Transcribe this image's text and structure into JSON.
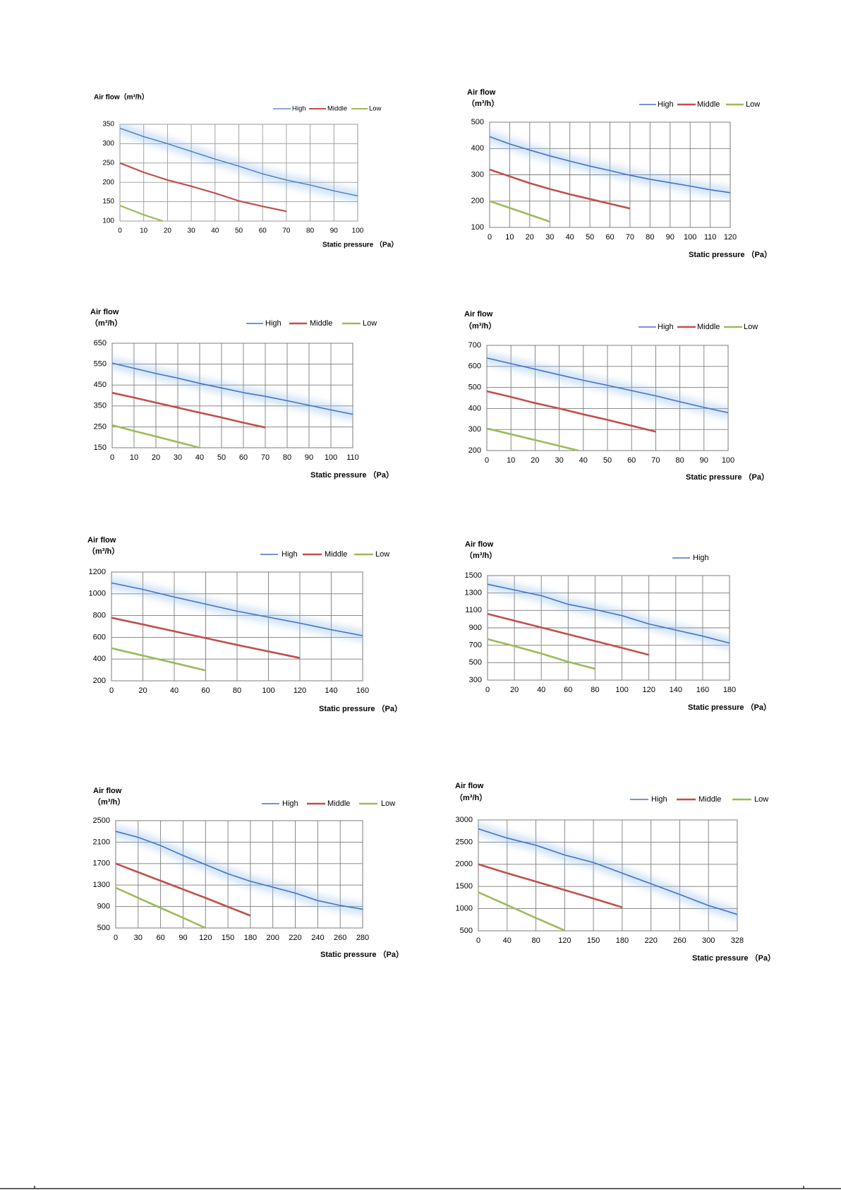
{
  "chart_data": [
    {
      "type": "line",
      "ylabel": [
        "Air flow（m³/h）"
      ],
      "xlabel": "Static pressure （Pa）",
      "x_scale": "linear",
      "xlim": [
        0,
        100
      ],
      "xticks": [
        0,
        10,
        20,
        30,
        40,
        50,
        60,
        70,
        80,
        90,
        100
      ],
      "ylim": [
        100,
        350
      ],
      "yticks": [
        100,
        150,
        200,
        250,
        300,
        350
      ],
      "grid": true,
      "legend_position": "top-right",
      "legend": [
        "High",
        "Middle",
        "Low"
      ],
      "series": [
        {
          "name": "High",
          "color": "#4472C4",
          "x": [
            0,
            10,
            20,
            30,
            40,
            50,
            60,
            70,
            80,
            90,
            100
          ],
          "y": [
            340,
            318,
            300,
            280,
            260,
            242,
            222,
            206,
            193,
            178,
            165
          ]
        },
        {
          "name": "Middle",
          "color": "#C0504D",
          "x": [
            0,
            10,
            20,
            30,
            40,
            50,
            60,
            70
          ],
          "y": [
            250,
            226,
            206,
            190,
            172,
            152,
            138,
            125
          ]
        },
        {
          "name": "Low",
          "color": "#9BBB59",
          "x": [
            0,
            10,
            18
          ],
          "y": [
            140,
            116,
            100
          ]
        }
      ]
    },
    {
      "type": "line",
      "ylabel": [
        "Air flow",
        "（m³/h）"
      ],
      "xlabel": "Static pressure （Pa）",
      "x_scale": "linear",
      "xlim": [
        0,
        120
      ],
      "xticks": [
        0,
        10,
        20,
        30,
        40,
        50,
        60,
        70,
        80,
        90,
        100,
        110,
        120
      ],
      "ylim": [
        100,
        500
      ],
      "yticks": [
        100,
        200,
        300,
        400,
        500
      ],
      "grid": true,
      "legend_position": "top-right",
      "legend": [
        "High",
        "Middle",
        "Low"
      ],
      "series": [
        {
          "name": "High",
          "color": "#4472C4",
          "x": [
            0,
            10,
            20,
            30,
            40,
            50,
            60,
            70,
            80,
            90,
            100,
            110,
            120
          ],
          "y": [
            445,
            417,
            394,
            372,
            352,
            333,
            316,
            298,
            283,
            270,
            257,
            243,
            232
          ]
        },
        {
          "name": "Middle",
          "color": "#C0504D",
          "x": [
            0,
            10,
            20,
            30,
            40,
            50,
            60,
            70
          ],
          "y": [
            320,
            294,
            268,
            246,
            226,
            208,
            190,
            172
          ]
        },
        {
          "name": "Low",
          "color": "#9BBB59",
          "x": [
            0,
            10,
            20,
            30
          ],
          "y": [
            200,
            174,
            148,
            122
          ]
        }
      ]
    },
    {
      "type": "line",
      "ylabel": [
        "Air flow",
        "（m³/h）"
      ],
      "xlabel": "Static pressure （Pa）",
      "x_scale": "linear",
      "xlim": [
        0,
        110
      ],
      "xticks": [
        0,
        10,
        20,
        30,
        40,
        50,
        60,
        70,
        80,
        90,
        100,
        110
      ],
      "ylim": [
        150,
        650
      ],
      "yticks": [
        150,
        250,
        350,
        450,
        550,
        650
      ],
      "grid": true,
      "legend_position": "top-right",
      "legend": [
        "High",
        "Middle",
        "Low"
      ],
      "series": [
        {
          "name": "High",
          "color": "#4472C4",
          "x": [
            0,
            10,
            20,
            30,
            40,
            50,
            60,
            70,
            80,
            90,
            100,
            110
          ],
          "y": [
            555,
            530,
            505,
            483,
            458,
            436,
            414,
            396,
            375,
            353,
            331,
            310
          ]
        },
        {
          "name": "Middle",
          "color": "#C0504D",
          "x": [
            0,
            10,
            20,
            30,
            40,
            50,
            60,
            70
          ],
          "y": [
            413,
            390,
            366,
            342,
            318,
            295,
            270,
            247
          ]
        },
        {
          "name": "Low",
          "color": "#9BBB59",
          "x": [
            0,
            10,
            20,
            30,
            40
          ],
          "y": [
            258,
            230,
            204,
            177,
            150
          ]
        }
      ]
    },
    {
      "type": "line",
      "ylabel": [
        "Air flow",
        "（m³/h）"
      ],
      "xlabel": "Static pressure （Pa）",
      "x_scale": "linear",
      "xlim": [
        0,
        100
      ],
      "xticks": [
        0,
        10,
        20,
        30,
        40,
        50,
        60,
        70,
        80,
        90,
        100
      ],
      "ylim": [
        200,
        700
      ],
      "yticks": [
        200,
        300,
        400,
        500,
        600,
        700
      ],
      "grid": true,
      "legend_position": "top-right",
      "legend": [
        "High",
        "Middle",
        "Low"
      ],
      "series": [
        {
          "name": "High",
          "color": "#4472C4",
          "x": [
            0,
            10,
            20,
            30,
            40,
            50,
            60,
            70,
            80,
            90,
            100
          ],
          "y": [
            640,
            613,
            587,
            560,
            534,
            510,
            485,
            460,
            432,
            405,
            380
          ]
        },
        {
          "name": "Middle",
          "color": "#C0504D",
          "x": [
            0,
            10,
            20,
            30,
            40,
            50,
            60,
            70
          ],
          "y": [
            482,
            455,
            426,
            400,
            372,
            346,
            318,
            290
          ]
        },
        {
          "name": "Low",
          "color": "#9BBB59",
          "x": [
            0,
            10,
            20,
            30,
            38
          ],
          "y": [
            305,
            278,
            250,
            222,
            200
          ]
        }
      ]
    },
    {
      "type": "line",
      "ylabel": [
        "Air flow",
        "（m³/h）"
      ],
      "xlabel": "Static pressure （Pa）",
      "x_scale": "linear",
      "xlim": [
        0,
        160
      ],
      "xticks": [
        0,
        20,
        40,
        60,
        80,
        100,
        120,
        140,
        160
      ],
      "ylim": [
        200,
        1200
      ],
      "yticks": [
        200,
        400,
        600,
        800,
        1000,
        1200
      ],
      "grid": true,
      "legend_position": "top-right",
      "legend": [
        "High",
        "Middle",
        "Low"
      ],
      "series": [
        {
          "name": "High",
          "color": "#4472C4",
          "x": [
            0,
            20,
            40,
            60,
            80,
            100,
            120,
            140,
            160
          ],
          "y": [
            1100,
            1040,
            970,
            905,
            840,
            785,
            730,
            670,
            615
          ]
        },
        {
          "name": "Middle",
          "color": "#C0504D",
          "x": [
            0,
            20,
            40,
            60,
            80,
            100,
            120
          ],
          "y": [
            780,
            718,
            655,
            593,
            530,
            470,
            410
          ]
        },
        {
          "name": "Low",
          "color": "#9BBB59",
          "x": [
            0,
            20,
            40,
            60
          ],
          "y": [
            500,
            432,
            364,
            295
          ]
        }
      ]
    },
    {
      "type": "line",
      "ylabel": [
        "Air flow",
        "（m³/h）"
      ],
      "xlabel": "Static pressure （Pa）",
      "x_scale": "linear",
      "xlim": [
        0,
        180
      ],
      "xticks": [
        0,
        20,
        40,
        60,
        80,
        100,
        120,
        140,
        160,
        180
      ],
      "ylim": [
        300,
        1500
      ],
      "yticks": [
        300,
        500,
        700,
        900,
        1100,
        1300,
        1500
      ],
      "grid": true,
      "legend_position": "top-right",
      "legend": [
        "High"
      ],
      "series": [
        {
          "name": "High",
          "color": "#4472C4",
          "x": [
            0,
            20,
            40,
            60,
            80,
            100,
            120,
            140,
            160,
            180
          ],
          "y": [
            1400,
            1335,
            1270,
            1170,
            1110,
            1040,
            945,
            875,
            805,
            725
          ]
        },
        {
          "color": "#C0504D",
          "x": [
            0,
            20,
            40,
            60,
            80,
            100,
            120
          ],
          "y": [
            1060,
            982,
            904,
            826,
            748,
            670,
            590
          ]
        },
        {
          "color": "#9BBB59",
          "x": [
            0,
            20,
            40,
            60,
            80
          ],
          "y": [
            770,
            690,
            605,
            510,
            430
          ]
        }
      ]
    },
    {
      "type": "line",
      "ylabel": [
        "Air flow",
        "（m³/h）"
      ],
      "xlabel": "Static pressure （Pa）",
      "x_scale": "category",
      "xticks": [
        0,
        30,
        60,
        90,
        120,
        150,
        180,
        200,
        220,
        240,
        260,
        280
      ],
      "ylim": [
        500,
        2500
      ],
      "yticks": [
        500,
        900,
        1300,
        1700,
        2100,
        2500
      ],
      "grid": true,
      "legend_position": "top-right",
      "legend": [
        "High",
        "Middle",
        "Low"
      ],
      "series": [
        {
          "name": "High",
          "color": "#4472C4",
          "x": [
            0,
            30,
            60,
            90,
            120,
            150,
            180,
            200,
            220,
            240,
            260,
            280
          ],
          "y": [
            2300,
            2190,
            2035,
            1850,
            1680,
            1510,
            1370,
            1260,
            1150,
            1010,
            920,
            850
          ]
        },
        {
          "name": "Middle",
          "color": "#C0504D",
          "x": [
            0,
            30,
            60,
            90,
            120,
            150,
            180
          ],
          "y": [
            1700,
            1540,
            1380,
            1220,
            1060,
            895,
            730
          ]
        },
        {
          "name": "Low",
          "color": "#9BBB59",
          "x": [
            0,
            30,
            60,
            90,
            120
          ],
          "y": [
            1250,
            1060,
            875,
            690,
            500
          ]
        }
      ]
    },
    {
      "type": "line",
      "ylabel": [
        "Air flow",
        "（m³/h）"
      ],
      "xlabel": "Static pressure （Pa）",
      "x_scale": "category",
      "xticks": [
        0,
        40,
        80,
        120,
        150,
        180,
        220,
        260,
        300,
        328
      ],
      "ylim": [
        500,
        3000
      ],
      "yticks": [
        500,
        1000,
        1500,
        2000,
        2500,
        3000
      ],
      "grid": true,
      "legend_position": "top-right",
      "legend": [
        "High",
        "Middle",
        "Low"
      ],
      "series": [
        {
          "name": "High",
          "color": "#4472C4",
          "x": [
            0,
            40,
            80,
            120,
            150,
            180,
            220,
            260,
            300,
            328
          ],
          "y": [
            2800,
            2590,
            2430,
            2210,
            2040,
            1800,
            1560,
            1320,
            1070,
            870
          ]
        },
        {
          "name": "Middle",
          "color": "#C0504D",
          "x": [
            0,
            40,
            80,
            120,
            150,
            180
          ],
          "y": [
            2000,
            1800,
            1610,
            1420,
            1230,
            1030
          ]
        },
        {
          "name": "Low",
          "color": "#9BBB59",
          "x": [
            0,
            40,
            80,
            120
          ],
          "y": [
            1370,
            1080,
            790,
            510
          ]
        }
      ]
    }
  ]
}
